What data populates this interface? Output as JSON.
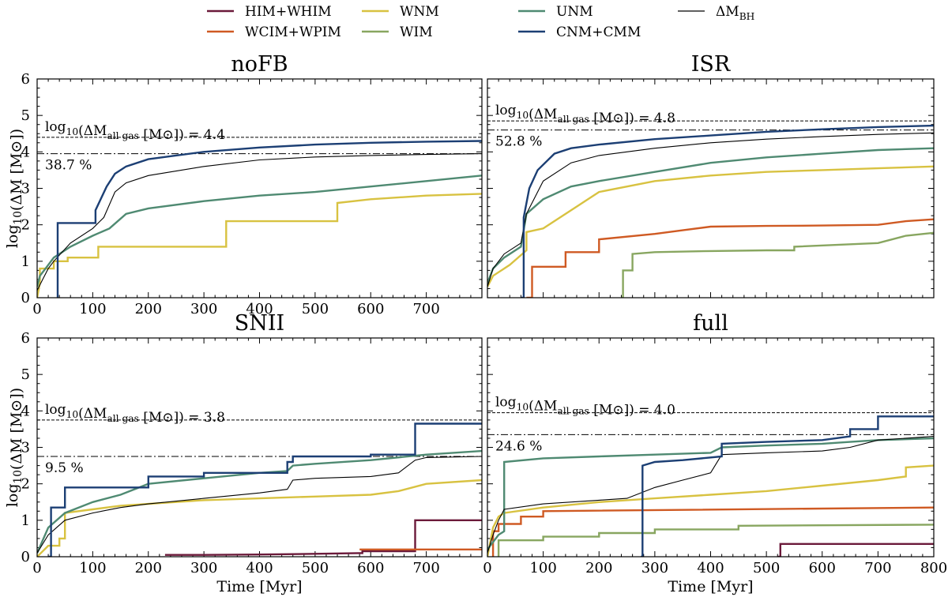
{
  "legend": [
    {
      "label": "HIM+WHIM",
      "color": "#6b1a3a"
    },
    {
      "label": "WNM",
      "color": "#d8c241"
    },
    {
      "label": "UNM",
      "color": "#4f8a72"
    },
    {
      "label": "ΔM_BH",
      "color": "#000000"
    },
    {
      "label": "WCIM+WPIM",
      "color": "#cf5a23"
    },
    {
      "label": "WIM",
      "color": "#88a660"
    },
    {
      "label": "CNM+CMM",
      "color": "#1c3f74"
    }
  ],
  "chart_data": [
    {
      "type": "line",
      "title": "noFB",
      "xlabel": "",
      "ylabel": "log10(ΔM [M⊙])",
      "xlim": [
        0,
        800
      ],
      "ylim": [
        0,
        6
      ],
      "xticks": [
        "0",
        "100",
        "200",
        "300",
        "400",
        "500",
        "600",
        "700"
      ],
      "yticks": [
        "0",
        "1",
        "2",
        "3",
        "4",
        "5",
        "6"
      ],
      "hline_total": 4.4,
      "hline_bh": 3.95,
      "annotation": "log10(ΔM_all gas [M⊙]) = 4.4",
      "percent": "38.7 %",
      "series": [
        {
          "name": "CNM+CMM",
          "x": [
            37,
            37,
            37,
            105,
            105,
            125,
            140,
            160,
            200,
            300,
            400,
            500,
            600,
            700,
            800
          ],
          "y": [
            0,
            0,
            2.05,
            2.05,
            2.4,
            3.05,
            3.4,
            3.6,
            3.8,
            4.0,
            4.12,
            4.2,
            4.25,
            4.28,
            4.3
          ]
        },
        {
          "name": "UNM",
          "x": [
            0,
            5,
            15,
            30,
            60,
            100,
            130,
            160,
            200,
            300,
            400,
            500,
            600,
            700,
            800
          ],
          "y": [
            0.3,
            0.6,
            0.8,
            1.1,
            1.4,
            1.7,
            1.9,
            2.3,
            2.45,
            2.65,
            2.8,
            2.9,
            3.05,
            3.2,
            3.35
          ]
        },
        {
          "name": "WNM",
          "x": [
            0,
            5,
            5,
            30,
            30,
            55,
            55,
            110,
            110,
            170,
            170,
            340,
            340,
            540,
            540,
            600,
            700,
            800
          ],
          "y": [
            0,
            0.4,
            0.8,
            0.8,
            1.0,
            1.0,
            1.1,
            1.1,
            1.4,
            1.4,
            1.4,
            1.4,
            2.1,
            2.1,
            2.6,
            2.7,
            2.8,
            2.85
          ]
        },
        {
          "name": "ΔM_BH",
          "x": [
            0,
            10,
            20,
            30,
            60,
            100,
            120,
            140,
            160,
            200,
            300,
            400,
            500,
            600,
            700,
            800
          ],
          "y": [
            0.2,
            0.5,
            0.8,
            1.0,
            1.5,
            1.9,
            2.2,
            2.9,
            3.15,
            3.35,
            3.6,
            3.78,
            3.86,
            3.9,
            3.93,
            3.95
          ]
        }
      ]
    },
    {
      "type": "line",
      "title": "ISR",
      "xlabel": "",
      "ylabel": "",
      "xlim": [
        0,
        800
      ],
      "ylim": [
        0,
        6
      ],
      "xticks": [],
      "yticks": [],
      "hline_total": 4.85,
      "hline_bh": 4.6,
      "annotation": "log10(ΔM_all gas [M⊙]) = 4.8",
      "percent": "52.8 %",
      "series": [
        {
          "name": "CNM+CMM",
          "x": [
            60,
            65,
            65,
            75,
            90,
            120,
            150,
            200,
            300,
            400,
            500,
            600,
            700,
            800
          ],
          "y": [
            0,
            0,
            2.2,
            3.0,
            3.5,
            3.95,
            4.1,
            4.2,
            4.35,
            4.45,
            4.55,
            4.62,
            4.68,
            4.72
          ]
        },
        {
          "name": "UNM",
          "x": [
            0,
            10,
            30,
            60,
            70,
            100,
            150,
            200,
            300,
            400,
            500,
            600,
            700,
            800
          ],
          "y": [
            0.4,
            0.8,
            1.1,
            1.4,
            2.3,
            2.7,
            3.05,
            3.2,
            3.45,
            3.7,
            3.85,
            3.95,
            4.05,
            4.1
          ]
        },
        {
          "name": "WNM",
          "x": [
            0,
            10,
            40,
            70,
            70,
            100,
            160,
            200,
            300,
            400,
            500,
            600,
            700,
            800
          ],
          "y": [
            0.3,
            0.6,
            0.9,
            1.3,
            1.8,
            1.9,
            2.5,
            2.9,
            3.2,
            3.35,
            3.45,
            3.5,
            3.55,
            3.6
          ]
        },
        {
          "name": "WCIM+WPIM",
          "x": [
            70,
            80,
            80,
            140,
            140,
            200,
            200,
            300,
            350,
            400,
            500,
            600,
            700,
            750,
            800
          ],
          "y": [
            0,
            0,
            0.85,
            0.85,
            1.25,
            1.25,
            1.6,
            1.75,
            1.85,
            1.95,
            1.97,
            1.98,
            2.0,
            2.1,
            2.15
          ]
        },
        {
          "name": "WIM",
          "x": [
            240,
            243,
            243,
            260,
            260,
            300,
            400,
            500,
            550,
            550,
            700,
            750,
            800
          ],
          "y": [
            0,
            0,
            0.75,
            0.75,
            1.2,
            1.25,
            1.28,
            1.3,
            1.3,
            1.4,
            1.5,
            1.7,
            1.78
          ]
        },
        {
          "name": "ΔM_BH",
          "x": [
            0,
            10,
            30,
            60,
            70,
            100,
            150,
            200,
            300,
            400,
            500,
            600,
            700,
            800
          ],
          "y": [
            0.3,
            0.8,
            1.2,
            1.5,
            2.3,
            3.2,
            3.7,
            3.9,
            4.1,
            4.25,
            4.35,
            4.42,
            4.48,
            4.52
          ]
        }
      ]
    },
    {
      "type": "line",
      "title": "SNII",
      "xlabel": "Time [Myr]",
      "ylabel": "log10(ΔM [M⊙])",
      "xlim": [
        0,
        800
      ],
      "ylim": [
        0,
        6
      ],
      "xticks": [
        "0",
        "100",
        "200",
        "300",
        "400",
        "500",
        "600",
        "700"
      ],
      "yticks": [
        "0",
        "1",
        "2",
        "3",
        "4",
        "5",
        "6"
      ],
      "hline_total": 3.75,
      "hline_bh": 2.75,
      "annotation": "log10(ΔM_all gas [M⊙]) = 3.8",
      "percent": "9.5 %",
      "series": [
        {
          "name": "CNM+CMM",
          "x": [
            20,
            25,
            25,
            50,
            50,
            120,
            120,
            200,
            200,
            300,
            300,
            450,
            450,
            460,
            460,
            600,
            600,
            680,
            680,
            800
          ],
          "y": [
            0,
            0,
            1.35,
            1.35,
            1.9,
            1.9,
            1.9,
            1.9,
            2.2,
            2.2,
            2.3,
            2.3,
            2.6,
            2.6,
            2.75,
            2.75,
            2.8,
            2.8,
            3.65,
            3.65
          ]
        },
        {
          "name": "UNM",
          "x": [
            0,
            20,
            50,
            100,
            150,
            200,
            300,
            400,
            450,
            460,
            500,
            600,
            700,
            800
          ],
          "y": [
            0.1,
            0.8,
            1.2,
            1.5,
            1.7,
            2.0,
            2.15,
            2.3,
            2.35,
            2.5,
            2.55,
            2.65,
            2.8,
            2.9
          ]
        },
        {
          "name": "WNM",
          "x": [
            0,
            20,
            40,
            40,
            50,
            50,
            100,
            150,
            200,
            300,
            400,
            500,
            600,
            650,
            700,
            800
          ],
          "y": [
            0,
            0.3,
            0.3,
            0.5,
            0.5,
            1.2,
            1.3,
            1.4,
            1.45,
            1.55,
            1.6,
            1.65,
            1.7,
            1.8,
            2.0,
            2.1
          ]
        },
        {
          "name": "HIM+WHIM",
          "x": [
            230,
            300,
            400,
            500,
            580,
            585,
            585,
            680,
            680,
            800
          ],
          "y": [
            0.05,
            0.05,
            0.06,
            0.08,
            0.1,
            0.1,
            0.15,
            0.15,
            1.0,
            1.0
          ]
        },
        {
          "name": "WCIM+WPIM",
          "x": [
            580,
            800
          ],
          "y": [
            0.2,
            0.2
          ]
        },
        {
          "name": "ΔM_BH",
          "x": [
            0,
            20,
            50,
            100,
            150,
            200,
            300,
            400,
            450,
            460,
            500,
            600,
            650,
            680,
            700,
            800
          ],
          "y": [
            0.1,
            0.6,
            1.0,
            1.2,
            1.35,
            1.45,
            1.6,
            1.75,
            1.85,
            2.1,
            2.15,
            2.2,
            2.3,
            2.65,
            2.72,
            2.75
          ]
        }
      ]
    },
    {
      "type": "line",
      "title": "full",
      "xlabel": "Time [Myr]",
      "ylabel": "",
      "xlim": [
        0,
        800
      ],
      "ylim": [
        0,
        6
      ],
      "xticks": [
        "0",
        "100",
        "200",
        "300",
        "400",
        "500",
        "600",
        "700",
        "800"
      ],
      "yticks": [],
      "hline_total": 3.95,
      "hline_bh": 3.35,
      "annotation": "log10(ΔM_all gas [M⊙]) = 4.0",
      "percent": "24.6 %",
      "series": [
        {
          "name": "CNM+CMM",
          "x": [
            275,
            278,
            278,
            300,
            350,
            420,
            420,
            500,
            600,
            650,
            650,
            700,
            700,
            800
          ],
          "y": [
            0,
            0,
            2.5,
            2.6,
            2.65,
            2.75,
            3.1,
            3.15,
            3.2,
            3.3,
            3.5,
            3.5,
            3.85,
            3.85
          ]
        },
        {
          "name": "UNM",
          "x": [
            0,
            20,
            30,
            30,
            100,
            200,
            300,
            400,
            420,
            500,
            600,
            650,
            700,
            800
          ],
          "y": [
            0.2,
            0.6,
            0.7,
            2.6,
            2.7,
            2.75,
            2.8,
            2.85,
            3.0,
            3.05,
            3.1,
            3.15,
            3.2,
            3.25
          ]
        },
        {
          "name": "WNM",
          "x": [
            0,
            10,
            20,
            30,
            100,
            200,
            300,
            400,
            500,
            600,
            700,
            750,
            750,
            800
          ],
          "y": [
            0,
            0.8,
            1.1,
            1.2,
            1.35,
            1.5,
            1.6,
            1.7,
            1.8,
            1.95,
            2.1,
            2.2,
            2.45,
            2.5
          ]
        },
        {
          "name": "WCIM+WPIM",
          "x": [
            10,
            10,
            20,
            20,
            60,
            60,
            100,
            100,
            800
          ],
          "y": [
            0,
            0.7,
            0.7,
            0.9,
            0.9,
            1.1,
            1.1,
            1.25,
            1.35
          ]
        },
        {
          "name": "WIM",
          "x": [
            20,
            20,
            100,
            100,
            200,
            200,
            300,
            300,
            450,
            450,
            800
          ],
          "y": [
            0,
            0.45,
            0.45,
            0.55,
            0.55,
            0.65,
            0.65,
            0.75,
            0.75,
            0.85,
            0.88
          ]
        },
        {
          "name": "HIM+WHIM",
          "x": [
            520,
            525,
            525,
            800
          ],
          "y": [
            0,
            0,
            0.35,
            0.35
          ]
        },
        {
          "name": "ΔM_BH",
          "x": [
            0,
            10,
            20,
            30,
            100,
            200,
            250,
            300,
            350,
            400,
            420,
            500,
            600,
            650,
            700,
            800
          ],
          "y": [
            0.1,
            0.6,
            1.0,
            1.3,
            1.45,
            1.55,
            1.6,
            1.9,
            2.1,
            2.3,
            2.8,
            2.85,
            2.9,
            3.0,
            3.2,
            3.3
          ]
        }
      ]
    }
  ]
}
